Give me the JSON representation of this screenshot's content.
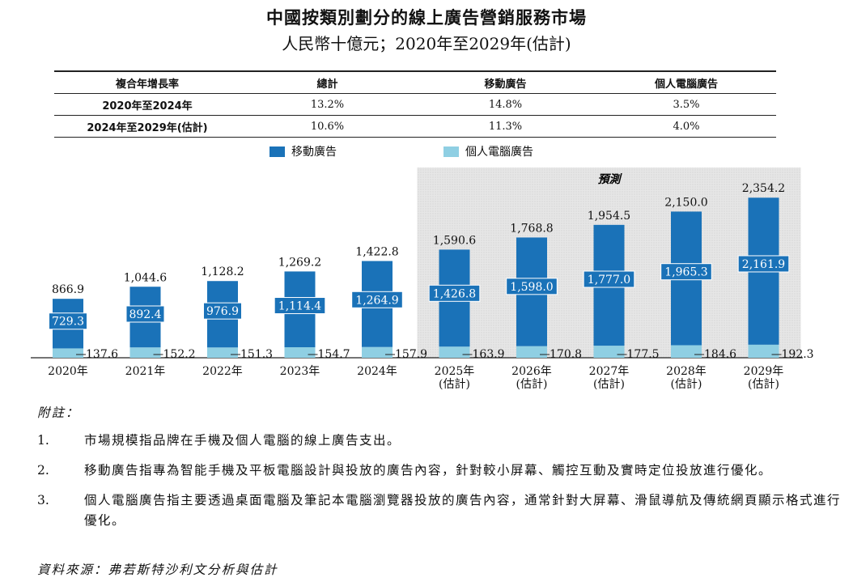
{
  "title": "中國按類別劃分的線上廣告營銷服務市場",
  "subtitle": "人民幣十億元；2020年至2029年(估計)",
  "cagr_table": {
    "headers": [
      "複合年增長率",
      "總計",
      "移動廣告",
      "個人電腦廣告"
    ],
    "rows": [
      {
        "label": "2020年至2024年",
        "total": "13.2%",
        "mobile": "14.8%",
        "pc": "3.5%"
      },
      {
        "label": "2024年至2029年(估計)",
        "total": "10.6%",
        "mobile": "11.3%",
        "pc": "4.0%"
      }
    ]
  },
  "forecast_label": "預測",
  "colors": {
    "mobile": "#1a72b8",
    "pc": "#8fcfe3",
    "forecast_bg": "#e6e6e6",
    "mobile_label_bg": "#1a72b8"
  },
  "chart_data": {
    "type": "bar",
    "stacked": true,
    "categories": [
      "2020年",
      "2021年",
      "2022年",
      "2023年",
      "2024年",
      "2025年",
      "2026年",
      "2027年",
      "2028年",
      "2029年"
    ],
    "category_notes": [
      "",
      "",
      "",
      "",
      "",
      "(估計)",
      "(估計)",
      "(估計)",
      "(估計)",
      "(估計)"
    ],
    "series": [
      {
        "name": "移動廣告",
        "values": [
          729.3,
          892.4,
          976.9,
          1114.4,
          1264.9,
          1426.8,
          1598.0,
          1777.0,
          1965.3,
          2161.9
        ]
      },
      {
        "name": "個人電腦廣告",
        "values": [
          137.6,
          152.2,
          151.3,
          154.7,
          157.9,
          163.9,
          170.8,
          177.5,
          184.6,
          192.3
        ]
      }
    ],
    "totals": [
      866.9,
      1044.6,
      1128.2,
      1269.2,
      1422.8,
      1590.6,
      1768.8,
      1954.5,
      2150.0,
      2354.2
    ],
    "mobile_labels": [
      "729.3",
      "892.4",
      "976.9",
      "1,114.4",
      "1,264.9",
      "1,426.8",
      "1,598.0",
      "1,777.0",
      "1,965.3",
      "2,161.9"
    ],
    "pc_labels": [
      "137.6",
      "152.2",
      "151.3",
      "154.7",
      "157.9",
      "163.9",
      "170.8",
      "177.5",
      "184.6",
      "192.3"
    ],
    "total_labels": [
      "866.9",
      "1,044.6",
      "1,128.2",
      "1,269.2",
      "1,422.8",
      "1,590.6",
      "1,768.8",
      "1,954.5",
      "2,150.0",
      "2,354.2"
    ],
    "forecast_start_index": 5,
    "ylim": [
      0,
      2500
    ],
    "grid": false,
    "legend_position": "top-center"
  },
  "notes": {
    "heading": "附註：",
    "items": [
      {
        "num": "1.",
        "text": "市場規模指品牌在手機及個人電腦的線上廣告支出。"
      },
      {
        "num": "2.",
        "text": "移動廣告指專為智能手機及平板電腦設計與投放的廣告內容，針對較小屏幕、觸控互動及實時定位投放進行優化。"
      },
      {
        "num": "3.",
        "text": "個人電腦廣告指主要透過桌面電腦及筆記本電腦瀏覽器投放的廣告內容，通常針對大屏幕、滑鼠導航及傳統網頁顯示格式進行優化。"
      }
    ]
  },
  "source": "資料來源：弗若斯特沙利文分析與估計"
}
